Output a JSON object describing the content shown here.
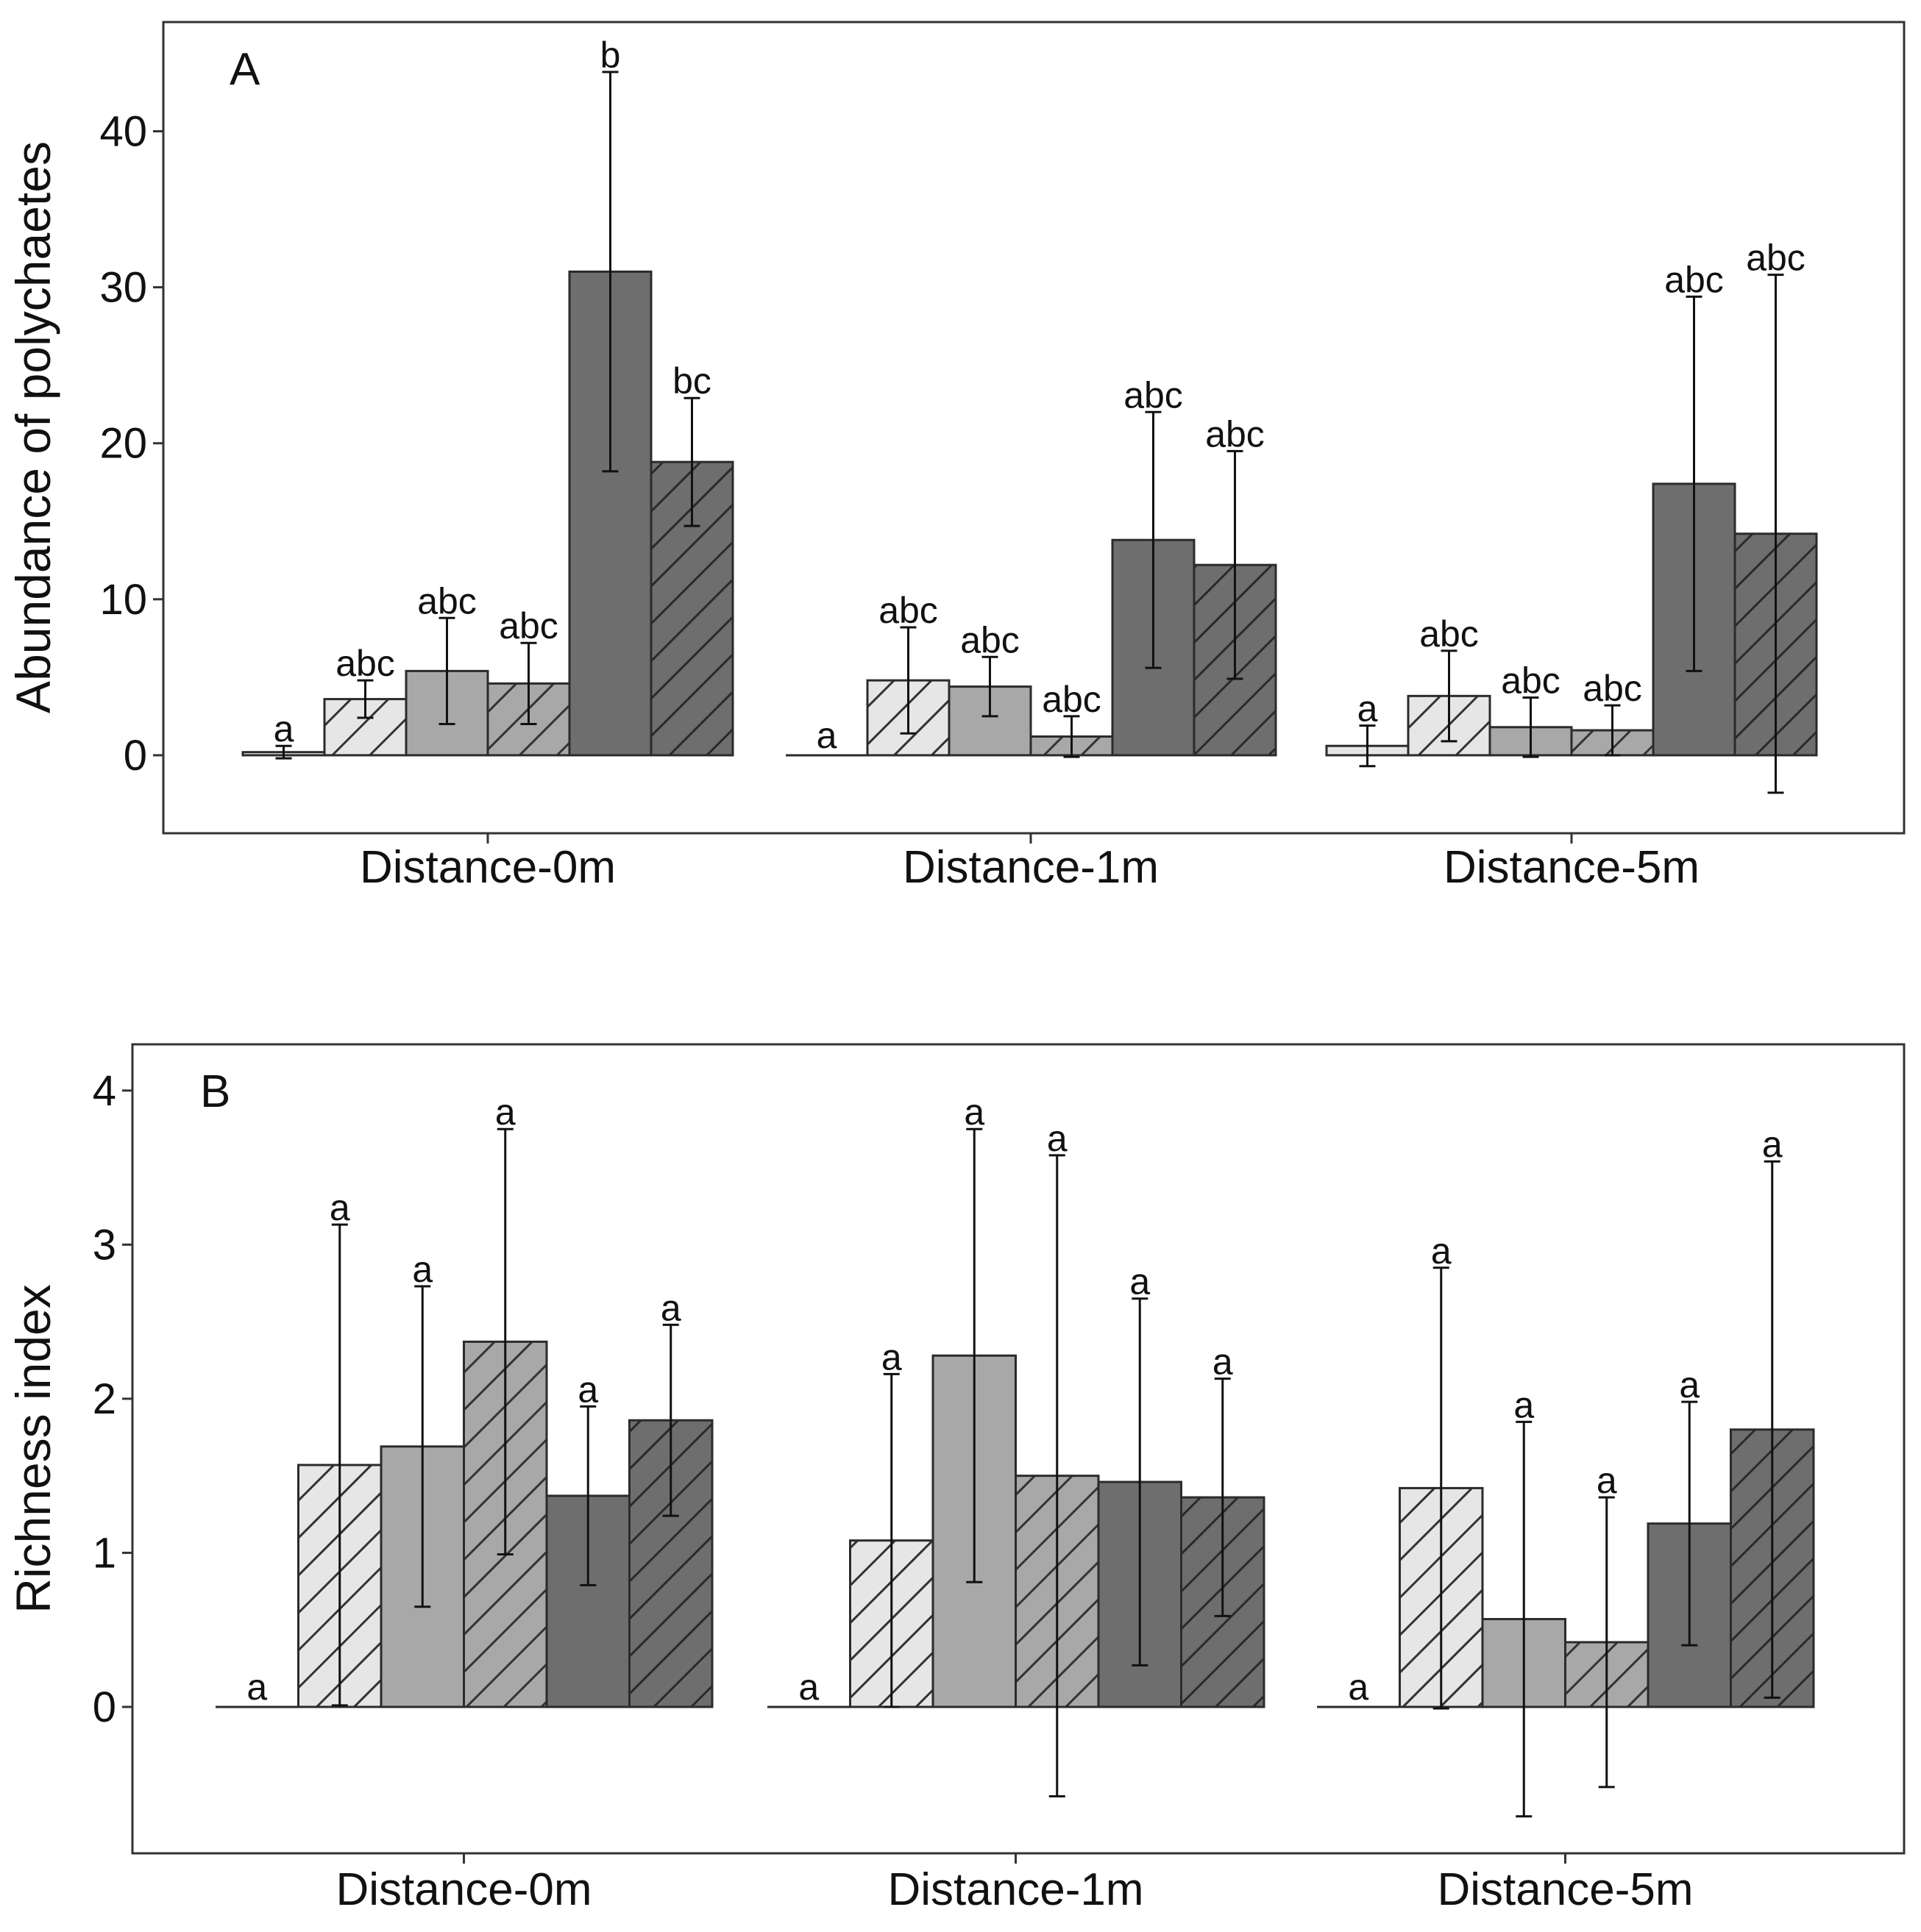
{
  "chart_data": [
    {
      "type": "bar",
      "panel_label": "A",
      "ylabel": "Abundance of polychaetes",
      "ylim": [
        -5,
        47
      ],
      "yticks": [
        0,
        10,
        20,
        30,
        40
      ],
      "categories": [
        "Distance-0m",
        "Distance-1m",
        "Distance-5m"
      ],
      "series": [
        {
          "name": "s1",
          "fill": "#e6e6e6",
          "hatch": false,
          "values": [
            0.2,
            0.0,
            0.6
          ],
          "err": [
            0.4,
            0.0,
            1.3
          ],
          "sig": [
            "a",
            "a",
            "a"
          ]
        },
        {
          "name": "s2",
          "fill": "#e6e6e6",
          "hatch": true,
          "values": [
            3.6,
            4.8,
            3.8
          ],
          "err": [
            1.2,
            3.4,
            2.9
          ],
          "sig": [
            "abc",
            "abc",
            "abc"
          ]
        },
        {
          "name": "s3",
          "fill": "#a8a8a8",
          "hatch": false,
          "values": [
            5.4,
            4.4,
            1.8
          ],
          "err": [
            3.4,
            1.9,
            1.9
          ],
          "sig": [
            "abc",
            "abc",
            "abc"
          ]
        },
        {
          "name": "s4",
          "fill": "#a8a8a8",
          "hatch": true,
          "values": [
            4.6,
            1.2,
            1.6
          ],
          "err": [
            2.6,
            1.3,
            1.6
          ],
          "sig": [
            "abc",
            "abc",
            "abc"
          ]
        },
        {
          "name": "s5",
          "fill": "#6e6e6e",
          "hatch": false,
          "values": [
            31.0,
            13.8,
            17.4
          ],
          "err": [
            12.8,
            8.2,
            12.0
          ],
          "sig": [
            "b",
            "abc",
            "abc"
          ]
        },
        {
          "name": "s6",
          "fill": "#6e6e6e",
          "hatch": true,
          "values": [
            18.8,
            12.2,
            14.2
          ],
          "err": [
            4.1,
            7.3,
            16.6
          ],
          "sig": [
            "bc",
            "abc",
            "abc"
          ]
        }
      ]
    },
    {
      "type": "bar",
      "panel_label": "B",
      "ylabel": "Richness index",
      "ylim": [
        -0.95,
        4.3
      ],
      "yticks": [
        0,
        1,
        2,
        3,
        4
      ],
      "categories": [
        "Distance-0m",
        "Distance-1m",
        "Distance-5m"
      ],
      "series": [
        {
          "name": "s1",
          "fill": "#e6e6e6",
          "hatch": false,
          "values": [
            0.0,
            0.0,
            0.0
          ],
          "err": [
            0.0,
            0.0,
            0.0
          ],
          "sig": [
            "a",
            "a",
            "a"
          ]
        },
        {
          "name": "s2",
          "fill": "#e6e6e6",
          "hatch": true,
          "values": [
            1.57,
            1.08,
            1.42
          ],
          "err": [
            1.56,
            1.08,
            1.43
          ],
          "sig": [
            "a",
            "a",
            "a"
          ]
        },
        {
          "name": "s3",
          "fill": "#a8a8a8",
          "hatch": false,
          "values": [
            1.69,
            2.28,
            0.57
          ],
          "err": [
            1.04,
            1.47,
            1.28
          ],
          "sig": [
            "a",
            "a",
            "a"
          ]
        },
        {
          "name": "s4",
          "fill": "#a8a8a8",
          "hatch": true,
          "values": [
            2.37,
            1.5,
            0.42
          ],
          "err": [
            1.38,
            2.08,
            0.94
          ],
          "sig": [
            "a",
            "a",
            "a"
          ]
        },
        {
          "name": "s5",
          "fill": "#6e6e6e",
          "hatch": false,
          "values": [
            1.37,
            1.46,
            1.19
          ],
          "err": [
            0.58,
            1.19,
            0.79
          ],
          "sig": [
            "a",
            "a",
            "a"
          ]
        },
        {
          "name": "s6",
          "fill": "#6e6e6e",
          "hatch": true,
          "values": [
            1.86,
            1.36,
            1.8
          ],
          "err": [
            0.62,
            0.77,
            1.74
          ],
          "sig": [
            "a",
            "a",
            "a"
          ]
        }
      ]
    }
  ]
}
